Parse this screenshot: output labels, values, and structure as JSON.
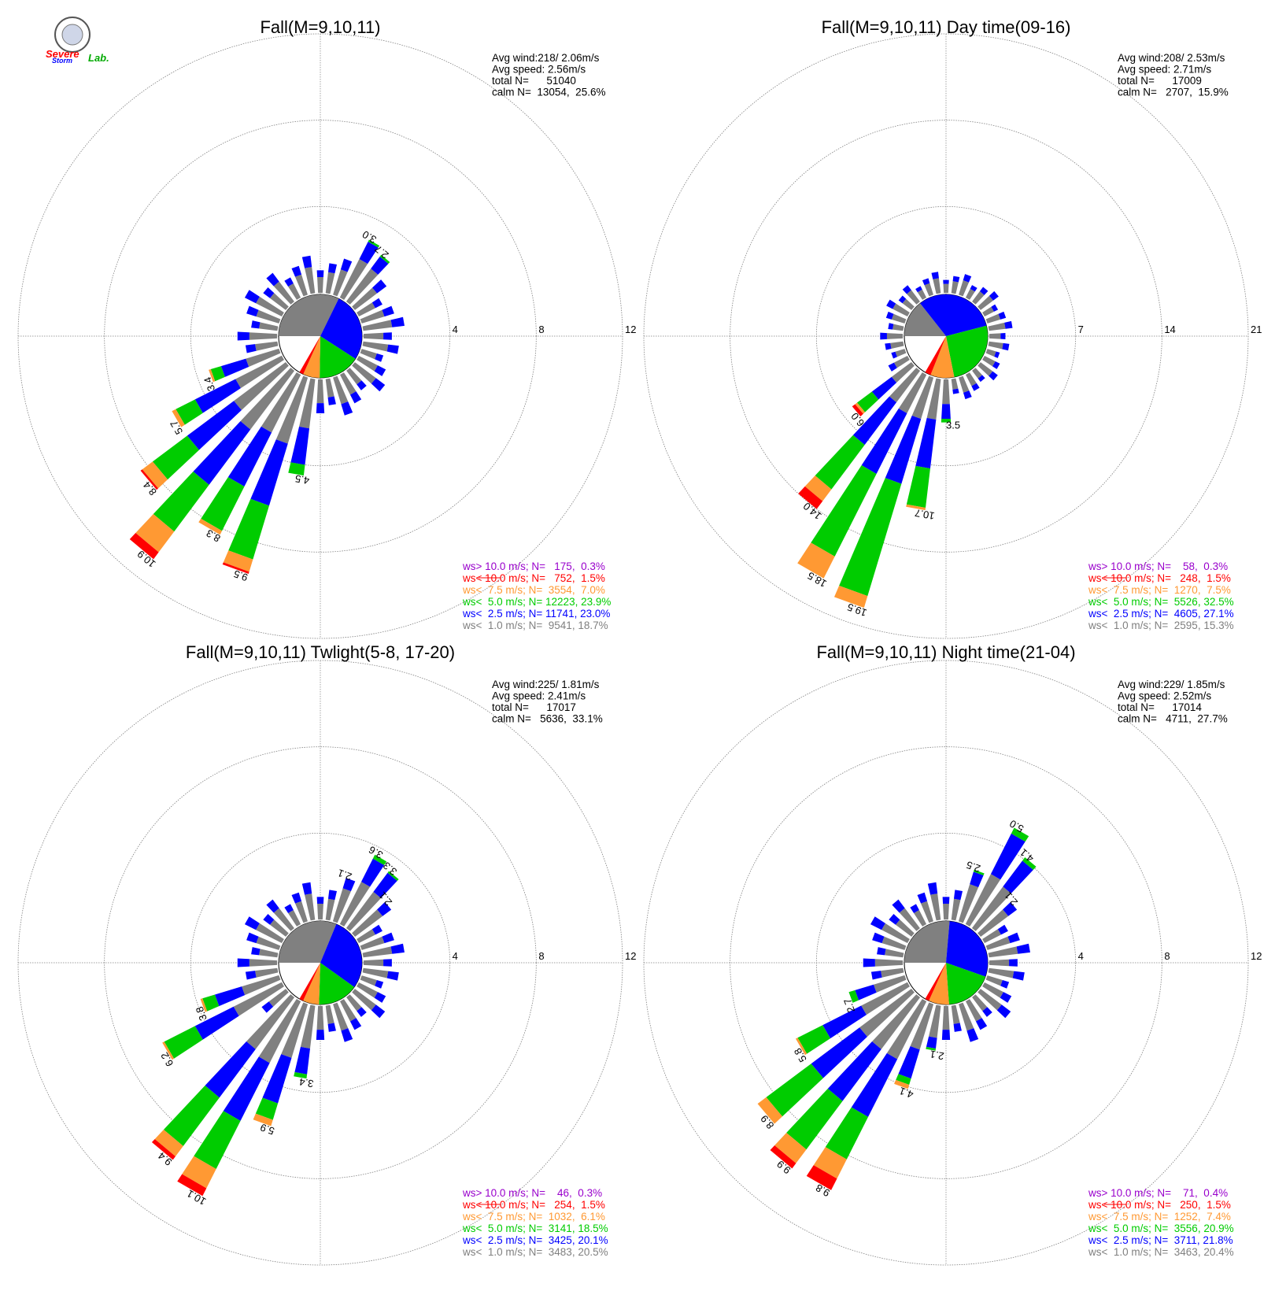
{
  "colors": {
    "ws_gt10": "#9900cc",
    "ws_lt10": "#ff0000",
    "ws_lt7_5": "#ff9933",
    "ws_lt5": "#00cc00",
    "ws_lt2_5": "#0000ff",
    "ws_lt1": "#808080",
    "grid": "#808080"
  },
  "logo": {
    "text_a": "Severe",
    "text_b": "Storm",
    "text_c": "Lab."
  },
  "chart_data": [
    {
      "type": "windrose",
      "title": "Fall(M=9,10,11)",
      "stats": [
        "Avg wind:218/ 2.06m/s",
        "Avg speed: 2.56m/s",
        "total N=      51040",
        "calm N=  13054,  25.6%"
      ],
      "rings": [
        4,
        8,
        12
      ],
      "ring_labels": [
        "4",
        "8",
        "12"
      ],
      "calm_pie": [
        [
          "ws_lt1",
          12
        ],
        [
          "ws_lt2_5",
          10
        ],
        [
          "ws_lt5",
          6
        ],
        [
          "ws_lt7_5",
          2.4
        ],
        [
          "ws_lt10",
          0.6
        ]
      ],
      "bars": [
        {
          "dir": 200,
          "total": 9.5,
          "segs": [
            3.2,
            3.0,
            2.6,
            0.6,
            0.1
          ],
          "label": "9.5"
        },
        {
          "dir": 210,
          "total": 8.3,
          "segs": [
            3.0,
            2.8,
            2.3,
            0.2,
            0.0
          ],
          "label": "8.3"
        },
        {
          "dir": 220,
          "total": 10.9,
          "segs": [
            3.4,
            3.2,
            2.7,
            1.2,
            0.4
          ],
          "label": "10.9"
        },
        {
          "dir": 230,
          "total": 8.4,
          "segs": [
            3.0,
            2.7,
            2.0,
            0.6,
            0.1
          ],
          "label": "8.4"
        },
        {
          "dir": 240,
          "total": 5.7,
          "segs": [
            2.4,
            2.1,
            1.0,
            0.2,
            0.0
          ],
          "label": "5.7"
        },
        {
          "dir": 190,
          "total": 4.5,
          "segs": [
            2.3,
            1.7,
            0.5,
            0,
            0
          ],
          "label": "4.5"
        },
        {
          "dir": 250,
          "total": 3.4,
          "segs": [
            1.6,
            1.2,
            0.5,
            0.1,
            0
          ],
          "label": "3.4"
        },
        {
          "dir": 30,
          "total": 3.0,
          "segs": [
            2.0,
            0.9,
            0.1,
            0,
            0
          ],
          "label": "3.0"
        },
        {
          "dir": 40,
          "total": 2.7,
          "segs": [
            1.9,
            0.7,
            0.1,
            0,
            0
          ],
          "label": "2.7"
        }
      ],
      "legend": [
        {
          "key": "ws_gt10",
          "text": "ws> 10.0 m/s; N=   175,  0.3%"
        },
        {
          "key": "ws_lt10",
          "text": "ws< 10.0 m/s; N=   752,  1.5%"
        },
        {
          "key": "ws_lt7_5",
          "text": "ws<  7.5 m/s; N=  3554,  7.0%"
        },
        {
          "key": "ws_lt5",
          "text": "ws<  5.0 m/s; N= 12223, 23.9%"
        },
        {
          "key": "ws_lt2_5",
          "text": "ws<  2.5 m/s; N= 11741, 23.0%"
        },
        {
          "key": "ws_lt1",
          "text": "ws<  1.0 m/s; N=  9541, 18.7%"
        }
      ]
    },
    {
      "type": "windrose",
      "title": "Fall(M=9,10,11) Day time(09-16)",
      "stats": [
        "Avg wind:208/ 2.53m/s",
        "Avg speed: 2.71m/s",
        "total N=      17009",
        "calm N=   2707,  15.9%"
      ],
      "rings": [
        7,
        14,
        21
      ],
      "ring_labels": [
        "7",
        "14",
        "21"
      ],
      "calm_pie": [
        [
          "ws_lt1",
          5
        ],
        [
          "ws_lt2_5",
          11
        ],
        [
          "ws_lt5",
          9
        ],
        [
          "ws_lt7_5",
          3.2
        ],
        [
          "ws_lt10",
          0.8
        ]
      ],
      "bars": [
        {
          "dir": 190,
          "total": 10.7,
          "segs": [
            3.3,
            4.0,
            3.2,
            0.2,
            0.0
          ],
          "label": "10.7"
        },
        {
          "dir": 200,
          "total": 19.5,
          "segs": [
            3.5,
            5.5,
            9.5,
            1.0,
            0.0
          ],
          "label": "19.5"
        },
        {
          "dir": 210,
          "total": 18.5,
          "segs": [
            3.5,
            5.5,
            7.5,
            2.0,
            0.0
          ],
          "label": "18.5"
        },
        {
          "dir": 220,
          "total": 14.0,
          "segs": [
            3.2,
            4.3,
            4.5,
            1.2,
            0.8
          ],
          "label": "14.0"
        },
        {
          "dir": 230,
          "total": 6.0,
          "segs": [
            2.0,
            2.0,
            1.5,
            0.2,
            0.3
          ],
          "label": "6.0"
        },
        {
          "dir": 180,
          "total": 3.5,
          "segs": [
            2.0,
            1.2,
            0.3,
            0,
            0
          ],
          "label": "3.5"
        }
      ],
      "legend": [
        {
          "key": "ws_gt10",
          "text": "ws> 10.0 m/s; N=    58,  0.3%"
        },
        {
          "key": "ws_lt10",
          "text": "ws< 10.0 m/s; N=   248,  1.5%"
        },
        {
          "key": "ws_lt7_5",
          "text": "ws<  7.5 m/s; N=  1270,  7.5%"
        },
        {
          "key": "ws_lt5",
          "text": "ws<  5.0 m/s; N=  5526, 32.5%"
        },
        {
          "key": "ws_lt2_5",
          "text": "ws<  2.5 m/s; N=  4605, 27.1%"
        },
        {
          "key": "ws_lt1",
          "text": "ws<  1.0 m/s; N=  2595, 15.3%"
        }
      ]
    },
    {
      "type": "windrose",
      "title": "Fall(M=9,10,11) Twlight(5-8, 17-20)",
      "stats": [
        "Avg wind:225/ 1.81m/s",
        "Avg speed: 2.41m/s",
        "total N=      17017",
        "calm N=   5636,  33.1%"
      ],
      "rings": [
        4,
        8,
        12
      ],
      "ring_labels": [
        "4",
        "8",
        "12"
      ],
      "calm_pie": [
        [
          "ws_lt1",
          12
        ],
        [
          "ws_lt2_5",
          11
        ],
        [
          "ws_lt5",
          6
        ],
        [
          "ws_lt7_5",
          2.4
        ],
        [
          "ws_lt10",
          0.6
        ]
      ],
      "bars": [
        {
          "dir": 200,
          "total": 5.9,
          "segs": [
            2.6,
            2.2,
            0.8,
            0.3,
            0.0
          ],
          "label": "5.9"
        },
        {
          "dir": 210,
          "total": 10.1,
          "segs": [
            3.2,
            3.0,
            2.5,
            1.0,
            0.4
          ],
          "label": "10.1"
        },
        {
          "dir": 220,
          "total": 9.4,
          "segs": [
            3.0,
            2.8,
            2.8,
            0.6,
            0.2
          ],
          "label": "9.4"
        },
        {
          "dir": 240,
          "total": 6.2,
          "segs": [
            2.5,
            2.0,
            1.6,
            0.1,
            0.0
          ],
          "label": "6.2"
        },
        {
          "dir": 250,
          "total": 3.8,
          "segs": [
            1.8,
            1.3,
            0.6,
            0.1,
            0
          ],
          "label": "3.8"
        },
        {
          "dir": 190,
          "total": 3.4,
          "segs": [
            2.0,
            1.2,
            0.2,
            0,
            0
          ],
          "label": "3.4"
        },
        {
          "dir": 20,
          "total": 2.1,
          "segs": [
            1.6,
            0.5,
            0,
            0,
            0
          ],
          "label": "2.1"
        },
        {
          "dir": 30,
          "total": 3.6,
          "segs": [
            2.2,
            1.2,
            0.2,
            0,
            0
          ],
          "label": "3.6"
        },
        {
          "dir": 40,
          "total": 3.3,
          "segs": [
            2.1,
            1.1,
            0.1,
            0,
            0
          ],
          "label": "3.3"
        },
        {
          "dir": 50,
          "total": 2.1,
          "segs": [
            1.6,
            0.5,
            0,
            0,
            0
          ],
          "label": "2.1"
        }
      ],
      "legend": [
        {
          "key": "ws_gt10",
          "text": "ws> 10.0 m/s; N=    46,  0.3%"
        },
        {
          "key": "ws_lt10",
          "text": "ws< 10.0 m/s; N=   254,  1.5%"
        },
        {
          "key": "ws_lt7_5",
          "text": "ws<  7.5 m/s; N=  1032,  6.1%"
        },
        {
          "key": "ws_lt5",
          "text": "ws<  5.0 m/s; N=  3141, 18.5%"
        },
        {
          "key": "ws_lt2_5",
          "text": "ws<  2.5 m/s; N=  3425, 20.1%"
        },
        {
          "key": "ws_lt1",
          "text": "ws<  1.0 m/s; N=  3483, 20.5%"
        }
      ]
    },
    {
      "type": "windrose",
      "title": "Fall(M=9,10,11) Night time(21-04)",
      "stats": [
        "Avg wind:229/ 1.85m/s",
        "Avg speed: 2.52m/s",
        "total N=      17014",
        "calm N=   4711,  27.7%"
      ],
      "rings": [
        4,
        8,
        12
      ],
      "ring_labels": [
        "4",
        "8",
        "12"
      ],
      "calm_pie": [
        [
          "ws_lt1",
          10
        ],
        [
          "ws_lt2_5",
          11
        ],
        [
          "ws_lt5",
          7
        ],
        [
          "ws_lt7_5",
          3
        ],
        [
          "ws_lt10",
          0.6
        ]
      ],
      "bars": [
        {
          "dir": 200,
          "total": 4.1,
          "segs": [
            2.2,
            1.4,
            0.3,
            0.2,
            0
          ],
          "label": "4.1"
        },
        {
          "dir": 190,
          "total": 2.1,
          "segs": [
            1.5,
            0.5,
            0.1,
            0,
            0
          ],
          "label": "2.1"
        },
        {
          "dir": 210,
          "total": 9.8,
          "segs": [
            3.0,
            3.0,
            2.2,
            1.0,
            0.6
          ],
          "label": "9.8"
        },
        {
          "dir": 220,
          "total": 9.9,
          "segs": [
            3.0,
            3.0,
            2.8,
            0.8,
            0.3
          ],
          "label": "9.9"
        },
        {
          "dir": 230,
          "total": 8.9,
          "segs": [
            3.0,
            2.8,
            2.6,
            0.5,
            0.0
          ],
          "label": "8.9"
        },
        {
          "dir": 240,
          "total": 5.8,
          "segs": [
            2.4,
            2.0,
            1.3,
            0.1,
            0
          ],
          "label": "5.8"
        },
        {
          "dir": 250,
          "total": 2.7,
          "segs": [
            1.5,
            0.9,
            0.3,
            0,
            0
          ],
          "label": "2.7"
        },
        {
          "dir": 20,
          "total": 2.5,
          "segs": [
            1.8,
            0.6,
            0.1,
            0,
            0
          ],
          "label": "2.5"
        },
        {
          "dir": 30,
          "total": 5.0,
          "segs": [
            2.6,
            2.1,
            0.3,
            0,
            0
          ],
          "label": "5.0"
        },
        {
          "dir": 40,
          "total": 4.1,
          "segs": [
            2.4,
            1.5,
            0.2,
            0,
            0
          ],
          "label": "4.1"
        },
        {
          "dir": 50,
          "total": 2.1,
          "segs": [
            1.6,
            0.5,
            0,
            0,
            0
          ],
          "label": "2.1"
        }
      ],
      "legend": [
        {
          "key": "ws_gt10",
          "text": "ws> 10.0 m/s; N=    71,  0.4%"
        },
        {
          "key": "ws_lt10",
          "text": "ws< 10.0 m/s; N=   250,  1.5%"
        },
        {
          "key": "ws_lt7_5",
          "text": "ws<  7.5 m/s; N=  1252,  7.4%"
        },
        {
          "key": "ws_lt5",
          "text": "ws<  5.0 m/s; N=  3556, 20.9%"
        },
        {
          "key": "ws_lt2_5",
          "text": "ws<  2.5 m/s; N=  3711, 21.8%"
        },
        {
          "key": "ws_lt1",
          "text": "ws<  1.0 m/s; N=  3463, 20.4%"
        }
      ]
    }
  ]
}
